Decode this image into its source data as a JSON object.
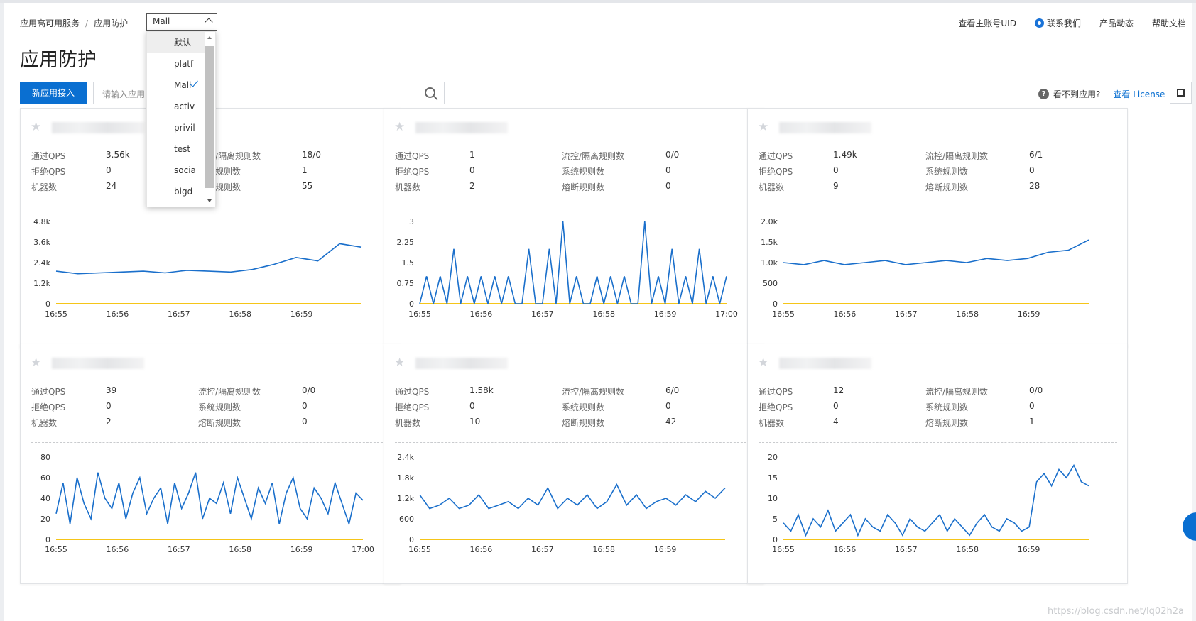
{
  "breadcrumb": {
    "root": "应用高可用服务",
    "current": "应用防护"
  },
  "app_select": {
    "value": "Mall"
  },
  "top_links": {
    "uid": "查看主账号UID",
    "contact": "联系我们",
    "news": "产品动态",
    "docs": "帮助文档"
  },
  "page_title": "应用防护",
  "new_app_button": "新应用接入",
  "search": {
    "placeholder": "请输入应用"
  },
  "help": {
    "question": "看不到应用?",
    "license_link": "查看 License"
  },
  "dropdown": {
    "options": [
      "默认",
      "platf",
      "Mall",
      "activ",
      "privil",
      "test",
      "socia",
      "bigd"
    ],
    "selected": "Mall",
    "hover": "默认"
  },
  "metric_labels": {
    "pass_qps": "通过QPS",
    "block_qps": "拒绝QPS",
    "machines": "机器数",
    "flow_rules": "流控/隔离规则数",
    "system_rules": "系统规则数",
    "degrade_rules": "熔断规则数"
  },
  "colors": {
    "primary": "#0a6fd1",
    "series_pass": "#1a6fcb",
    "series_block": "#f5c518"
  },
  "cards": [
    {
      "name": "",
      "pass_qps": "3.56k",
      "block_qps": "0",
      "machines": "24",
      "flow_rules": "18/0",
      "system_rules": "1",
      "degrade_rules": "55"
    },
    {
      "name": "",
      "pass_qps": "1",
      "block_qps": "0",
      "machines": "2",
      "flow_rules": "0/0",
      "system_rules": "0",
      "degrade_rules": "0"
    },
    {
      "name": "",
      "pass_qps": "1.49k",
      "block_qps": "0",
      "machines": "9",
      "flow_rules": "6/1",
      "system_rules": "0",
      "degrade_rules": "28"
    },
    {
      "name": "",
      "pass_qps": "39",
      "block_qps": "0",
      "machines": "2",
      "flow_rules": "0/0",
      "system_rules": "0",
      "degrade_rules": "0"
    },
    {
      "name": "",
      "pass_qps": "1.58k",
      "block_qps": "0",
      "machines": "10",
      "flow_rules": "6/0",
      "system_rules": "0",
      "degrade_rules": "42"
    },
    {
      "name": "",
      "pass_qps": "12",
      "block_qps": "0",
      "machines": "4",
      "flow_rules": "0/0",
      "system_rules": "0",
      "degrade_rules": "1"
    }
  ],
  "chart_data": [
    {
      "type": "line",
      "x_ticks": [
        "16:55",
        "16:56",
        "16:57",
        "16:58",
        "16:59"
      ],
      "y_ticks": [
        "0",
        "1.2k",
        "2.4k",
        "3.6k",
        "4.8k"
      ],
      "ylim": [
        0,
        4800
      ],
      "x_range": [
        0,
        5
      ],
      "x_end": 5,
      "series": [
        {
          "values": [
            1.9,
            1.75,
            1.8,
            1.85,
            1.9,
            1.8,
            1.95,
            1.9,
            1.85,
            2.0,
            2.3,
            2.7,
            2.5,
            3.5,
            3.3
          ]
        },
        {
          "values": [
            0,
            0,
            0,
            0,
            0,
            0,
            0,
            0,
            0,
            0,
            0,
            0,
            0,
            0,
            0
          ]
        }
      ]
    },
    {
      "type": "line",
      "x_ticks": [
        "16:55",
        "16:56",
        "16:57",
        "16:58",
        "16:59",
        "17:00"
      ],
      "y_ticks": [
        "0",
        "0.75",
        "1.5",
        "2.25",
        "3"
      ],
      "ylim": [
        0,
        3
      ],
      "x_range": [
        0,
        5
      ],
      "x_end": 5,
      "series": [
        {
          "values": [
            0,
            1,
            0,
            1,
            0,
            2,
            0,
            1,
            0,
            1,
            0,
            1,
            0,
            1,
            0,
            0,
            2,
            0,
            0,
            2,
            0,
            3,
            0,
            1,
            0,
            0,
            1,
            0,
            1,
            0,
            1,
            0,
            0,
            3,
            0,
            1,
            0,
            2,
            0,
            1,
            0,
            2,
            0,
            1,
            0,
            1
          ]
        },
        {
          "values": [
            0,
            0,
            0,
            0,
            0,
            0,
            0,
            0,
            0,
            0,
            0,
            0,
            0,
            0,
            0,
            0,
            0,
            0,
            0,
            0,
            0,
            0,
            0,
            0,
            0,
            0,
            0,
            0,
            0,
            0,
            0,
            0,
            0,
            0,
            0,
            0,
            0,
            0,
            0,
            0,
            0,
            0,
            0,
            0,
            0,
            0
          ]
        }
      ]
    },
    {
      "type": "line",
      "x_ticks": [
        "16:55",
        "16:56",
        "16:57",
        "16:58",
        "16:59"
      ],
      "y_ticks": [
        "0",
        "500",
        "1.0k",
        "1.5k",
        "2.0k"
      ],
      "ylim": [
        0,
        2000
      ],
      "x_range": [
        0,
        5
      ],
      "x_end": 5,
      "series": [
        {
          "values": [
            1.0,
            0.95,
            1.05,
            0.95,
            1.0,
            1.05,
            0.95,
            1.0,
            1.05,
            1.0,
            1.1,
            1.05,
            1.1,
            1.25,
            1.3,
            1.55
          ]
        },
        {
          "values": [
            0,
            0,
            0,
            0,
            0,
            0,
            0,
            0,
            0,
            0,
            0,
            0,
            0,
            0,
            0,
            0
          ]
        }
      ]
    },
    {
      "type": "line",
      "x_ticks": [
        "16:55",
        "16:56",
        "16:57",
        "16:58",
        "16:59",
        "17:00"
      ],
      "y_ticks": [
        "0",
        "20",
        "40",
        "60",
        "80"
      ],
      "ylim": [
        0,
        80
      ],
      "x_range": [
        0,
        5
      ],
      "x_end": 5,
      "series": [
        {
          "values": [
            25,
            55,
            15,
            60,
            35,
            20,
            65,
            40,
            30,
            55,
            20,
            45,
            60,
            25,
            40,
            50,
            15,
            55,
            30,
            45,
            65,
            20,
            40,
            35,
            55,
            25,
            60,
            40,
            20,
            50,
            35,
            55,
            15,
            45,
            60,
            30,
            20,
            50,
            40,
            25,
            55,
            35,
            15,
            45,
            38
          ]
        },
        {
          "values": [
            0,
            0,
            0,
            0,
            0,
            0,
            0,
            0,
            0,
            0,
            0,
            0,
            0,
            0,
            0,
            0,
            0,
            0,
            0,
            0,
            0,
            0,
            0,
            0,
            0,
            0,
            0,
            0,
            0,
            0,
            0,
            0,
            0,
            0,
            0,
            0,
            0,
            0,
            0,
            0,
            0,
            0,
            0,
            0,
            0
          ]
        }
      ]
    },
    {
      "type": "line",
      "x_ticks": [
        "16:55",
        "16:56",
        "16:57",
        "16:58",
        "16:59"
      ],
      "y_ticks": [
        "0",
        "600",
        "1.2k",
        "1.8k",
        "2.4k"
      ],
      "ylim": [
        0,
        2400
      ],
      "x_range": [
        0,
        5
      ],
      "x_end": 5,
      "series": [
        {
          "values": [
            1.3,
            0.9,
            1.0,
            1.2,
            0.9,
            1.0,
            1.3,
            0.9,
            1.0,
            1.1,
            0.9,
            1.2,
            1.0,
            1.5,
            0.9,
            1.2,
            1.0,
            1.3,
            0.9,
            1.1,
            1.6,
            1.0,
            1.3,
            0.9,
            1.1,
            1.2,
            1.0,
            1.3,
            1.1,
            1.4,
            1.2,
            1.5
          ]
        },
        {
          "values": [
            0,
            0,
            0,
            0,
            0,
            0,
            0,
            0,
            0,
            0,
            0,
            0,
            0,
            0,
            0,
            0,
            0,
            0,
            0,
            0,
            0,
            0,
            0,
            0,
            0,
            0,
            0,
            0,
            0,
            0,
            0,
            0
          ]
        }
      ]
    },
    {
      "type": "line",
      "x_ticks": [
        "16:55",
        "16:56",
        "16:57",
        "16:58",
        "16:59"
      ],
      "y_ticks": [
        "0",
        "5",
        "10",
        "15",
        "20"
      ],
      "ylim": [
        0,
        20
      ],
      "x_range": [
        0,
        5
      ],
      "x_end": 5,
      "series": [
        {
          "values": [
            4,
            2,
            6,
            1,
            5,
            3,
            7,
            2,
            4,
            6,
            1,
            5,
            3,
            2,
            6,
            4,
            1,
            5,
            3,
            2,
            4,
            6,
            2,
            5,
            3,
            1,
            4,
            6,
            3,
            2,
            5,
            4,
            2,
            3,
            14,
            16,
            13,
            17,
            15,
            18,
            14,
            13
          ]
        },
        {
          "values": [
            0,
            0,
            0,
            0,
            0,
            0,
            0,
            0,
            0,
            0,
            0,
            0,
            0,
            0,
            0,
            0,
            0,
            0,
            0,
            0,
            0,
            0,
            0,
            0,
            0,
            0,
            0,
            0,
            0,
            0,
            0,
            0,
            0,
            0,
            0,
            0,
            0,
            0,
            0,
            0,
            0,
            0
          ]
        }
      ]
    }
  ]
}
